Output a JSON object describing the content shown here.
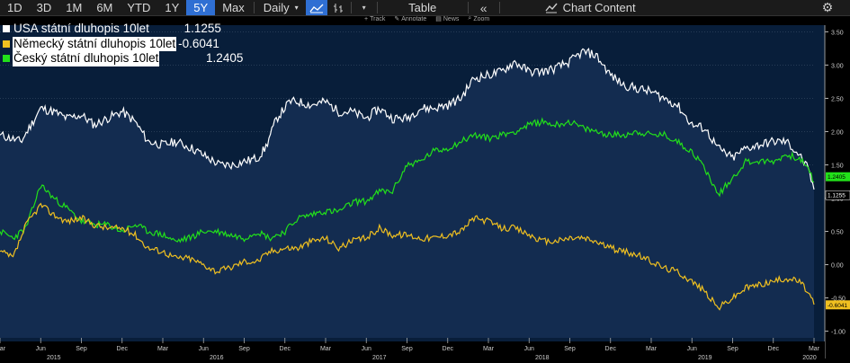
{
  "toolbar": {
    "ranges": [
      "1D",
      "3D",
      "1M",
      "6M",
      "YTD",
      "1Y",
      "5Y",
      "Max"
    ],
    "active_range": "5Y",
    "frequency": "Daily",
    "table_label": "Table",
    "chart_content_label": "Chart Content",
    "sub_tools": [
      "Track",
      "Annotate",
      "News",
      "Zoom"
    ]
  },
  "legend": [
    {
      "name": "USA státní dluhopis 10let",
      "value": "1.1255",
      "color": "#ffffff"
    },
    {
      "name": "Německý státní dluhopis 10let",
      "value": "-0.6041",
      "color": "#f0c020"
    },
    {
      "name": "Český státní dluhopis 10let",
      "value": "1.2405",
      "color": "#22e01a"
    }
  ],
  "chart_data": {
    "type": "line",
    "x_start": "2015-03",
    "x_end": "2020-03",
    "xticks_months": [
      "Mar",
      "Jun",
      "Sep",
      "Dec",
      "Mar",
      "Jun",
      "Sep",
      "Dec",
      "Mar",
      "Jun",
      "Sep",
      "Dec",
      "Mar",
      "Jun",
      "Sep",
      "Dec",
      "Mar",
      "Jun",
      "Sep",
      "Dec",
      "Mar"
    ],
    "xticks_years": [
      "2015",
      "2016",
      "2017",
      "2018",
      "2019",
      "2020"
    ],
    "yticks": [
      "-1.00",
      "-0.50",
      "0.00",
      "0.50",
      "1.00",
      "1.50",
      "2.00",
      "2.50",
      "3.00",
      "3.50"
    ],
    "ylim": [
      -1.1,
      3.6
    ],
    "last_value_labels": [
      {
        "text": "1.2405",
        "color": "#22e01a",
        "value": 1.2405
      },
      {
        "text": "1.1255",
        "color": "#ffffff",
        "value": 1.1255
      },
      {
        "text": "-0.6041",
        "color": "#f0c020",
        "value": -0.6041
      }
    ],
    "series": [
      {
        "name": "USA státní dluhopis 10let",
        "color": "#ffffff",
        "x": [
          2015.17,
          2015.3,
          2015.42,
          2015.5,
          2015.58,
          2015.67,
          2015.75,
          2015.83,
          2015.92,
          2016.0,
          2016.08,
          2016.17,
          2016.25,
          2016.35,
          2016.45,
          2016.52,
          2016.6,
          2016.67,
          2016.75,
          2016.8,
          2016.87,
          2016.95,
          2017.0,
          2017.08,
          2017.17,
          2017.25,
          2017.33,
          2017.42,
          2017.5,
          2017.58,
          2017.67,
          2017.75,
          2017.83,
          2017.92,
          2018.0,
          2018.08,
          2018.17,
          2018.25,
          2018.33,
          2018.42,
          2018.5,
          2018.58,
          2018.67,
          2018.75,
          2018.83,
          2018.92,
          2019.0,
          2019.08,
          2019.17,
          2019.25,
          2019.33,
          2019.42,
          2019.5,
          2019.58,
          2019.67,
          2019.75,
          2019.83,
          2019.92,
          2020.0,
          2020.08,
          2020.13,
          2020.17
        ],
        "y": [
          1.95,
          1.85,
          2.35,
          2.3,
          2.2,
          2.25,
          2.1,
          2.2,
          2.3,
          2.15,
          1.85,
          1.8,
          1.85,
          1.75,
          1.6,
          1.5,
          1.5,
          1.55,
          1.6,
          1.75,
          2.2,
          2.45,
          2.45,
          2.4,
          2.45,
          2.3,
          2.3,
          2.2,
          2.35,
          2.2,
          2.2,
          2.35,
          2.35,
          2.4,
          2.5,
          2.8,
          2.85,
          2.9,
          3.05,
          2.9,
          2.9,
          2.95,
          3.05,
          3.2,
          3.15,
          2.85,
          2.7,
          2.65,
          2.6,
          2.5,
          2.4,
          2.1,
          2.05,
          1.75,
          1.6,
          1.75,
          1.8,
          1.85,
          1.85,
          1.65,
          1.45,
          1.13
        ]
      },
      {
        "name": "Český státní dluhopis 10let",
        "color": "#22e01a",
        "x": [
          2015.17,
          2015.25,
          2015.33,
          2015.42,
          2015.5,
          2015.58,
          2015.67,
          2015.75,
          2015.83,
          2015.92,
          2016.0,
          2016.08,
          2016.17,
          2016.25,
          2016.33,
          2016.42,
          2016.5,
          2016.58,
          2016.67,
          2016.75,
          2016.83,
          2016.92,
          2017.0,
          2017.08,
          2017.15,
          2017.25,
          2017.35,
          2017.42,
          2017.5,
          2017.58,
          2017.67,
          2017.75,
          2017.83,
          2017.92,
          2018.0,
          2018.08,
          2018.17,
          2018.25,
          2018.33,
          2018.42,
          2018.5,
          2018.58,
          2018.67,
          2018.75,
          2018.83,
          2018.92,
          2019.0,
          2019.08,
          2019.17,
          2019.25,
          2019.33,
          2019.42,
          2019.5,
          2019.58,
          2019.67,
          2019.75,
          2019.83,
          2019.92,
          2020.0,
          2020.08,
          2020.13,
          2020.17
        ],
        "y": [
          0.5,
          0.4,
          0.55,
          1.2,
          1.0,
          0.85,
          0.65,
          0.6,
          0.6,
          0.5,
          0.6,
          0.5,
          0.45,
          0.35,
          0.4,
          0.5,
          0.5,
          0.45,
          0.4,
          0.5,
          0.4,
          0.5,
          0.7,
          0.75,
          0.8,
          0.8,
          0.95,
          0.95,
          1.1,
          1.1,
          1.5,
          1.55,
          1.7,
          1.75,
          1.85,
          1.95,
          1.9,
          1.95,
          2.0,
          2.1,
          2.15,
          2.1,
          2.15,
          2.05,
          2.0,
          1.95,
          1.95,
          2.0,
          1.95,
          1.95,
          1.85,
          1.7,
          1.45,
          1.05,
          1.3,
          1.55,
          1.55,
          1.55,
          1.65,
          1.6,
          1.45,
          1.24
        ]
      },
      {
        "name": "Německý státní dluhopis 10let",
        "color": "#f0c020",
        "x": [
          2015.17,
          2015.25,
          2015.33,
          2015.42,
          2015.5,
          2015.58,
          2015.67,
          2015.75,
          2015.83,
          2015.92,
          2016.0,
          2016.08,
          2016.17,
          2016.25,
          2016.33,
          2016.42,
          2016.5,
          2016.58,
          2016.67,
          2016.75,
          2016.83,
          2016.92,
          2017.0,
          2017.08,
          2017.17,
          2017.25,
          2017.33,
          2017.42,
          2017.5,
          2017.58,
          2017.67,
          2017.75,
          2017.83,
          2017.92,
          2018.0,
          2018.08,
          2018.17,
          2018.25,
          2018.33,
          2018.42,
          2018.5,
          2018.58,
          2018.67,
          2018.75,
          2018.83,
          2018.92,
          2019.0,
          2019.08,
          2019.17,
          2019.25,
          2019.33,
          2019.42,
          2019.5,
          2019.58,
          2019.67,
          2019.75,
          2019.83,
          2019.92,
          2020.0,
          2020.08,
          2020.13,
          2020.17
        ],
        "y": [
          0.2,
          0.1,
          0.6,
          0.9,
          0.75,
          0.65,
          0.7,
          0.6,
          0.55,
          0.55,
          0.45,
          0.25,
          0.2,
          0.1,
          0.1,
          0.0,
          -0.1,
          -0.05,
          0.05,
          0.05,
          0.2,
          0.25,
          0.25,
          0.35,
          0.4,
          0.25,
          0.35,
          0.4,
          0.55,
          0.45,
          0.45,
          0.4,
          0.4,
          0.45,
          0.5,
          0.7,
          0.65,
          0.55,
          0.55,
          0.45,
          0.35,
          0.35,
          0.4,
          0.4,
          0.35,
          0.25,
          0.2,
          0.15,
          0.05,
          -0.05,
          -0.1,
          -0.25,
          -0.4,
          -0.65,
          -0.5,
          -0.35,
          -0.3,
          -0.25,
          -0.2,
          -0.25,
          -0.4,
          -0.6
        ]
      }
    ]
  }
}
